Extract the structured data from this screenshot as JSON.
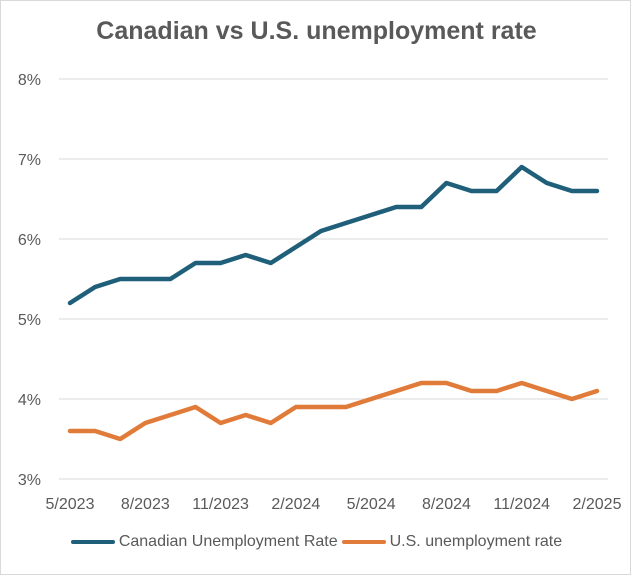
{
  "chart_data": {
    "type": "line",
    "title": "Canadian vs U.S. unemployment rate",
    "xlabel": "",
    "ylabel": "",
    "ylim": [
      3,
      8
    ],
    "yticks": [
      3,
      4,
      5,
      6,
      7,
      8
    ],
    "ytick_labels": [
      "3%",
      "4%",
      "5%",
      "6%",
      "7%",
      "8%"
    ],
    "x": [
      "5/2023",
      "6/2023",
      "7/2023",
      "8/2023",
      "9/2023",
      "10/2023",
      "11/2023",
      "12/2023",
      "1/2024",
      "2/2024",
      "3/2024",
      "4/2024",
      "5/2024",
      "6/2024",
      "7/2024",
      "8/2024",
      "9/2024",
      "10/2024",
      "11/2024",
      "12/2024",
      "1/2025",
      "2/2025"
    ],
    "xtick_labels": [
      "5/2023",
      "8/2023",
      "11/2023",
      "2/2024",
      "5/2024",
      "8/2024",
      "11/2024",
      "2/2025"
    ],
    "xtick_indices": [
      0,
      3,
      6,
      9,
      12,
      15,
      18,
      21
    ],
    "grid": true,
    "legend_position": "bottom",
    "series": [
      {
        "name": "Canadian Unemployment Rate",
        "color": "#1f5f7a",
        "values": [
          5.2,
          5.4,
          5.5,
          5.5,
          5.5,
          5.7,
          5.7,
          5.8,
          5.7,
          5.9,
          6.1,
          6.2,
          6.3,
          6.4,
          6.4,
          6.7,
          6.6,
          6.6,
          6.9,
          6.7,
          6.6,
          6.6
        ]
      },
      {
        "name": "U.S. unemployment rate",
        "color": "#e07b39",
        "values": [
          3.6,
          3.6,
          3.5,
          3.7,
          3.8,
          3.9,
          3.7,
          3.8,
          3.7,
          3.9,
          3.9,
          3.9,
          4.0,
          4.1,
          4.2,
          4.2,
          4.1,
          4.1,
          4.2,
          4.1,
          4.0,
          4.1
        ]
      }
    ]
  }
}
